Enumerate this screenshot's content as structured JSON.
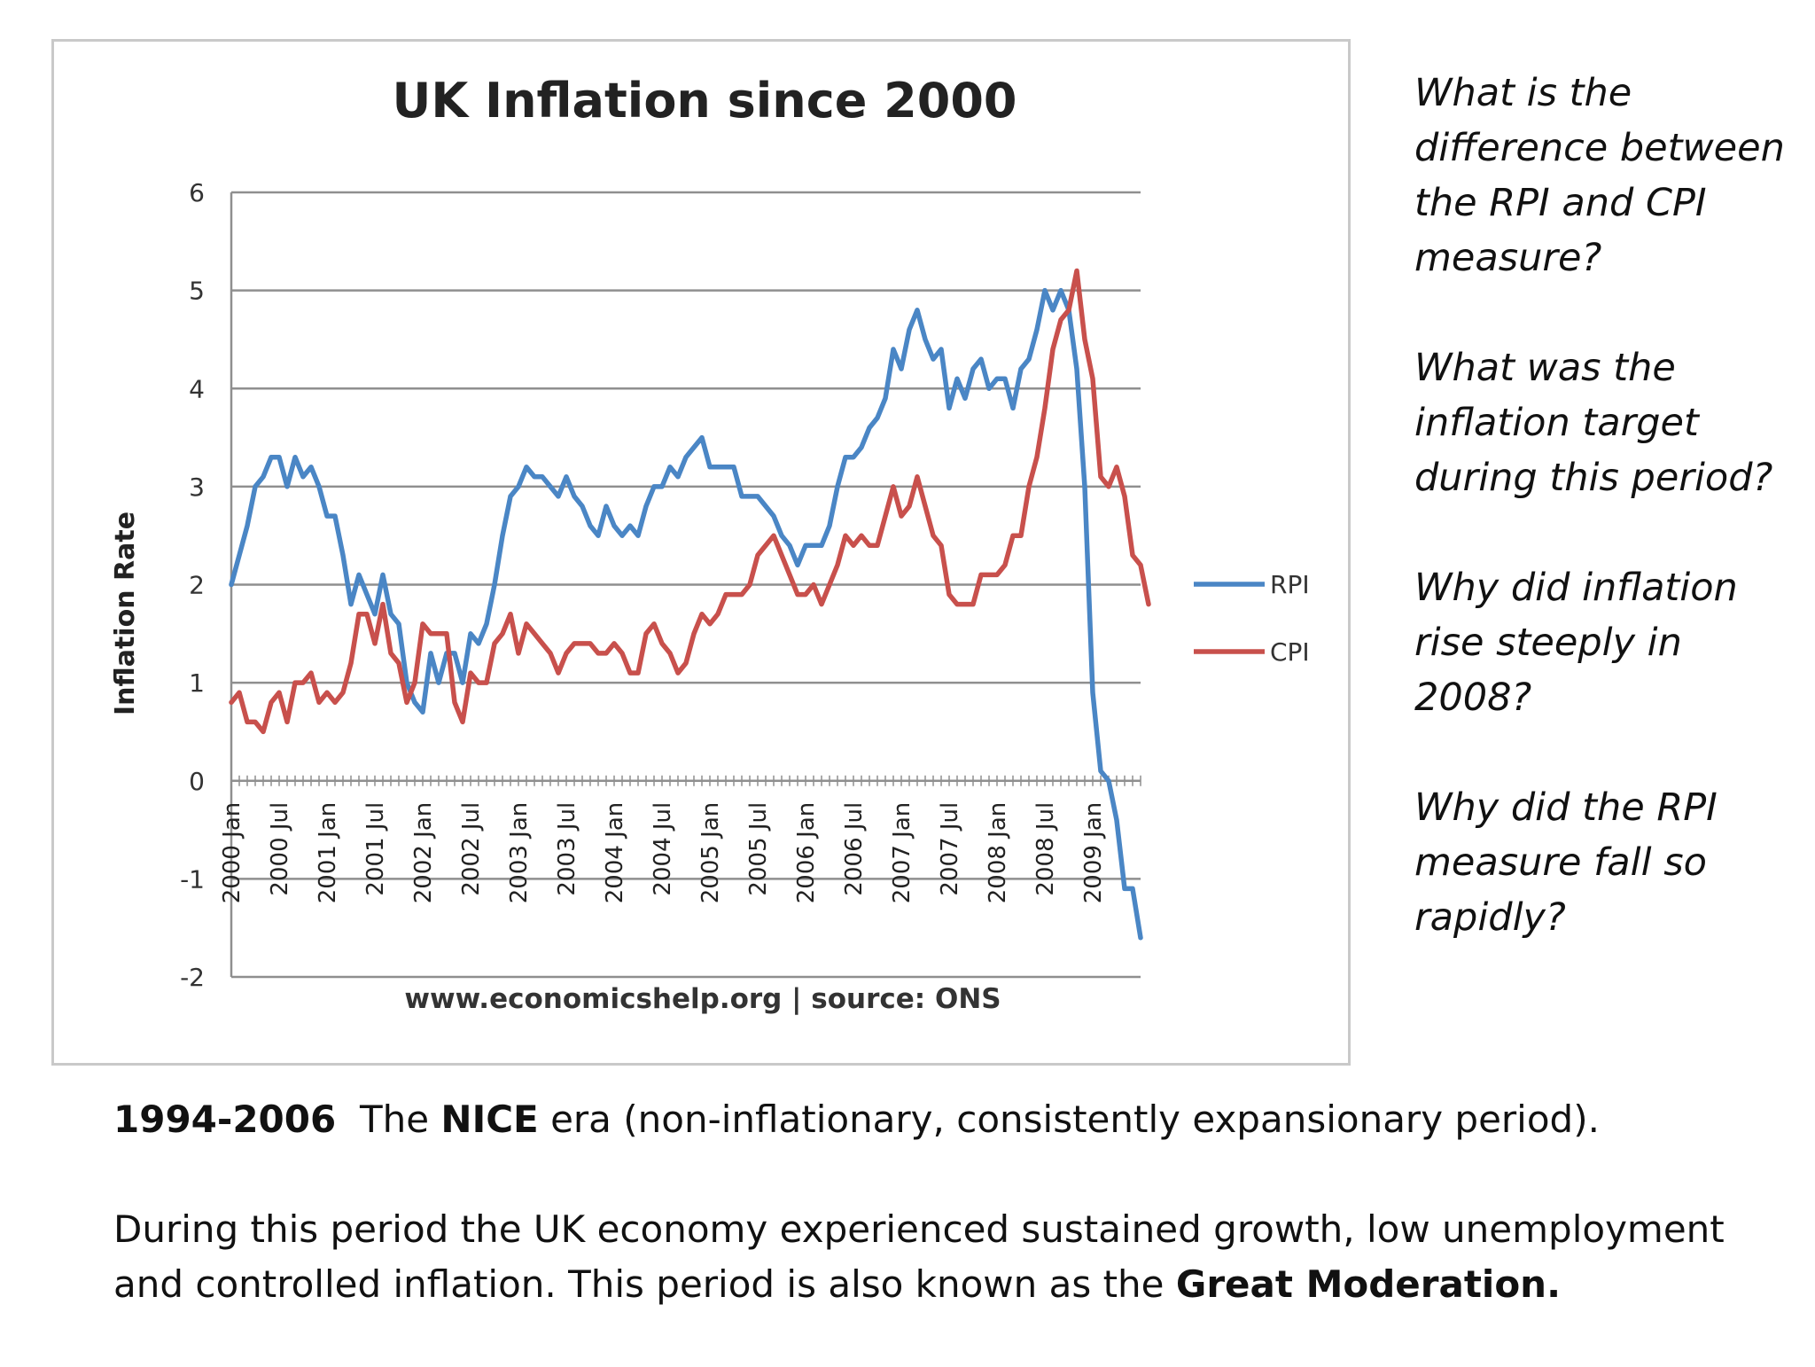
{
  "chart_data": {
    "type": "line",
    "title": "UK Inflation since 2000",
    "ylabel": "Inflation Rate",
    "xlabel": "",
    "source": "www.economicshelp.org | source: ONS",
    "ylim": [
      -2,
      6
    ],
    "yticks": [
      "6",
      "5",
      "4",
      "3",
      "2",
      "1",
      "0",
      "-1",
      "-2"
    ],
    "x_tick_labels": [
      "2000 Jan",
      "2000 Jul",
      "2001 Jan",
      "2001 Jul",
      "2002 Jan",
      "2002 Jul",
      "2003 Jan",
      "2003 Jul",
      "2004 Jan",
      "2004 Jul",
      "2005 Jan",
      "2005 Jul",
      "2006 Jan",
      "2006 Jul",
      "2007 Jan",
      "2007 Jul",
      "2008 Jan",
      "2008 Jul",
      "2009 Jan"
    ],
    "x_start": "2000 Jan",
    "x_end": "2009 May",
    "legend_position": "right",
    "gridlines": true,
    "series": [
      {
        "name": "RPI",
        "color": "#4a86c5",
        "values": [
          2.0,
          2.3,
          2.6,
          3.0,
          3.1,
          3.3,
          3.3,
          3.0,
          3.3,
          3.1,
          3.2,
          3.0,
          2.7,
          2.7,
          2.3,
          1.8,
          2.1,
          1.9,
          1.7,
          2.1,
          1.7,
          1.6,
          1.0,
          0.8,
          0.7,
          1.3,
          1.0,
          1.3,
          1.3,
          1.0,
          1.5,
          1.4,
          1.6,
          2.0,
          2.5,
          2.9,
          3.0,
          3.2,
          3.1,
          3.1,
          3.0,
          2.9,
          3.1,
          2.9,
          2.8,
          2.6,
          2.5,
          2.8,
          2.6,
          2.5,
          2.6,
          2.5,
          2.8,
          3.0,
          3.0,
          3.2,
          3.1,
          3.3,
          3.4,
          3.5,
          3.2,
          3.2,
          3.2,
          3.2,
          2.9,
          2.9,
          2.9,
          2.8,
          2.7,
          2.5,
          2.4,
          2.2,
          2.4,
          2.4,
          2.4,
          2.6,
          3.0,
          3.3,
          3.3,
          3.4,
          3.6,
          3.7,
          3.9,
          4.4,
          4.2,
          4.6,
          4.8,
          4.5,
          4.3,
          4.4,
          3.8,
          4.1,
          3.9,
          4.2,
          4.3,
          4.0,
          4.1,
          4.1,
          3.8,
          4.2,
          4.3,
          4.6,
          5.0,
          4.8,
          5.0,
          4.8,
          4.2,
          3.0,
          0.9,
          0.1,
          0.0,
          -0.4,
          -1.1,
          -1.1,
          -1.6
        ]
      },
      {
        "name": "CPI",
        "color": "#c8504c",
        "values": [
          0.8,
          0.9,
          0.6,
          0.6,
          0.5,
          0.8,
          0.9,
          0.6,
          1.0,
          1.0,
          1.1,
          0.8,
          0.9,
          0.8,
          0.9,
          1.2,
          1.7,
          1.7,
          1.4,
          1.8,
          1.3,
          1.2,
          0.8,
          1.0,
          1.6,
          1.5,
          1.5,
          1.5,
          0.8,
          0.6,
          1.1,
          1.0,
          1.0,
          1.4,
          1.5,
          1.7,
          1.3,
          1.6,
          1.5,
          1.4,
          1.3,
          1.1,
          1.3,
          1.4,
          1.4,
          1.4,
          1.3,
          1.3,
          1.4,
          1.3,
          1.1,
          1.1,
          1.5,
          1.6,
          1.4,
          1.3,
          1.1,
          1.2,
          1.5,
          1.7,
          1.6,
          1.7,
          1.9,
          1.9,
          1.9,
          2.0,
          2.3,
          2.4,
          2.5,
          2.3,
          2.1,
          1.9,
          1.9,
          2.0,
          1.8,
          2.0,
          2.2,
          2.5,
          2.4,
          2.5,
          2.4,
          2.4,
          2.7,
          3.0,
          2.7,
          2.8,
          3.1,
          2.8,
          2.5,
          2.4,
          1.9,
          1.8,
          1.8,
          1.8,
          2.1,
          2.1,
          2.1,
          2.2,
          2.5,
          2.5,
          3.0,
          3.3,
          3.8,
          4.4,
          4.7,
          4.8,
          5.2,
          4.5,
          4.1,
          3.1,
          3.0,
          3.2,
          2.9,
          2.3,
          2.2,
          1.8
        ]
      }
    ]
  },
  "questions": [
    "What is the difference between the RPI and CPI measure?",
    "What was the inflation target during this period?",
    "Why did inflation rise steeply in 2008?",
    "Why did the RPI measure fall so rapidly?"
  ],
  "notes": {
    "line1": {
      "years": "1994-2006",
      "the": "The",
      "nice": "NICE",
      "rest": "era (non-inflationary, consistently expansionary period)."
    },
    "line2": {
      "text": "During this period the UK economy experienced sustained growth, low unemployment and controlled inflation.  This period is also known as the",
      "bold": "Great Moderation."
    }
  }
}
